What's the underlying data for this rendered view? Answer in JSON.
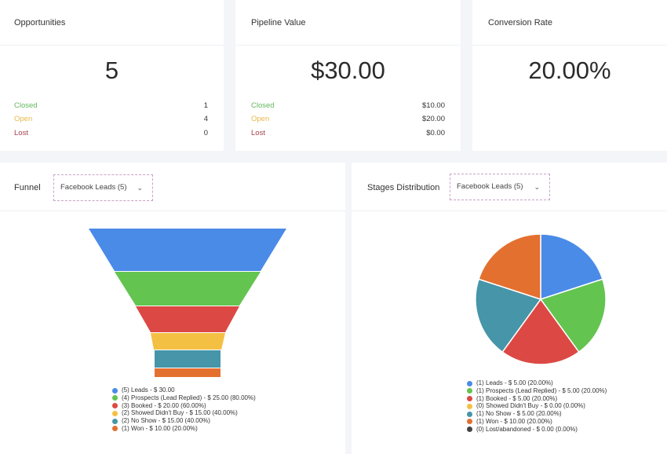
{
  "colors": {
    "closed": "#63b95b",
    "open": "#e8b84a",
    "lost": "#a4404b"
  },
  "summary": {
    "opportunities": {
      "title": "Opportunities",
      "value": "5",
      "rows": [
        {
          "label": "Closed",
          "value": "1"
        },
        {
          "label": "Open",
          "value": "4"
        },
        {
          "label": "Lost",
          "value": "0"
        }
      ]
    },
    "pipeline": {
      "title": "Pipeline Value",
      "value": "$30.00",
      "rows": [
        {
          "label": "Closed",
          "value": "$10.00"
        },
        {
          "label": "Open",
          "value": "$20.00"
        },
        {
          "label": "Lost",
          "value": "$0.00"
        }
      ]
    },
    "conversion": {
      "title": "Conversion Rate",
      "value": "20.00%"
    }
  },
  "funnel": {
    "title": "Funnel",
    "pipeline_select": "Facebook Leads (5)",
    "stages": [
      {
        "label": "(5) Leads - $ 30.00",
        "color": "#4a8be8"
      },
      {
        "label": "(4) Prospects (Lead Replied) - $ 25.00 (80.00%)",
        "color": "#63c450"
      },
      {
        "label": "(3) Booked - $ 20.00 (60.00%)",
        "color": "#dc4944"
      },
      {
        "label": "(2) Showed Didn't Buy - $ 15.00 (40.00%)",
        "color": "#f4c043"
      },
      {
        "label": "(2) No Show - $ 15.00 (40.00%)",
        "color": "#4695a8"
      },
      {
        "label": "(1) Won - $ 10.00 (20.00%)",
        "color": "#e4702f"
      }
    ]
  },
  "stages_distribution": {
    "title": "Stages Distribution",
    "pipeline_select": "Facebook Leads (5)",
    "slices": [
      {
        "label": "(1) Leads - $ 5.00 (20.00%)",
        "value": 1,
        "color": "#4a8be8"
      },
      {
        "label": "(1) Prospects (Lead Replied) - $ 5.00 (20.00%)",
        "value": 1,
        "color": "#63c450"
      },
      {
        "label": "(1) Booked - $ 5.00 (20.00%)",
        "value": 1,
        "color": "#dc4944"
      },
      {
        "label": "(0) Showed Didn't Buy - $ 0.00 (0.00%)",
        "value": 0,
        "color": "#f4c043"
      },
      {
        "label": "(1) No Show - $ 5.00 (20.00%)",
        "value": 1,
        "color": "#4695a8"
      },
      {
        "label": "(1) Won - $ 10.00 (20.00%)",
        "value": 1,
        "color": "#e4702f"
      },
      {
        "label": "(0) Lost/abandoned - $ 0.00 (0.00%)",
        "value": 0,
        "color": "#444444"
      }
    ]
  }
}
